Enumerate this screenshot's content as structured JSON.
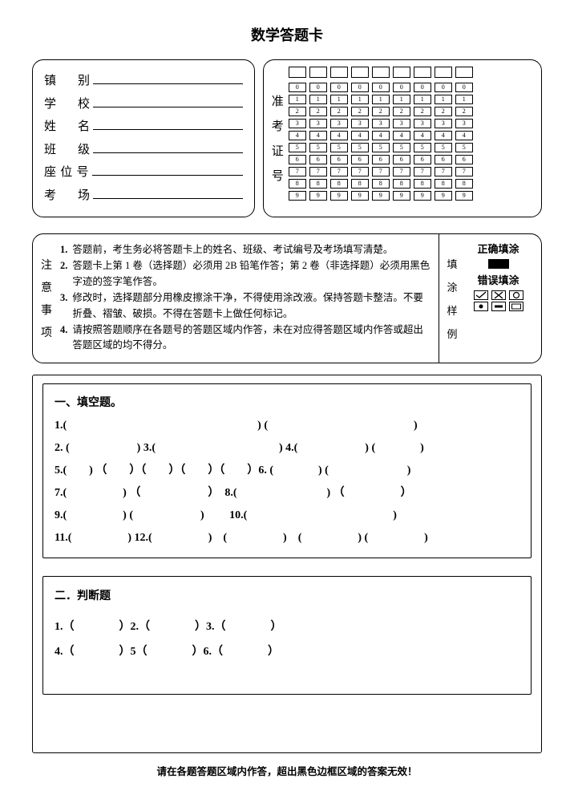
{
  "title": "数学答题卡",
  "info_fields": [
    {
      "chars": [
        "镇",
        "别"
      ],
      "spaced": true
    },
    {
      "chars": [
        "学",
        "校"
      ],
      "spaced": true
    },
    {
      "chars": [
        "姓",
        "名"
      ],
      "spaced": true
    },
    {
      "chars": [
        "班",
        "级"
      ],
      "spaced": true
    },
    {
      "chars": [
        "座",
        "位",
        "号"
      ],
      "spaced": false
    },
    {
      "chars": [
        "考",
        "场"
      ],
      "spaced": true
    }
  ],
  "admission_label": [
    "准",
    "考",
    "证",
    "号"
  ],
  "bubble_columns": 9,
  "bubble_digits": [
    "0",
    "1",
    "2",
    "3",
    "4",
    "5",
    "6",
    "7",
    "8",
    "9"
  ],
  "notice_vlabel": [
    "注",
    "意",
    "事",
    "项"
  ],
  "notices": [
    {
      "n": "1.",
      "t": "答题前，考生务必将答题卡上的姓名、班级、考试编号及考场填写清楚。"
    },
    {
      "n": "2.",
      "t": "答题卡上第 1 卷（选择题）必须用 2B 铅笔作答；第 2 卷（非选择题）必须用黑色字迹的签字笔作答。"
    },
    {
      "n": "3.",
      "t": "修改时，选择题部分用橡皮擦涂干净，不得使用涂改液。保持答题卡整洁。不要折叠、褶皱、破损。不得在答题卡上做任何标记。"
    },
    {
      "n": "4.",
      "t": "请按照答题顺序在各题号的答题区域内作答，未在对应得答题区域内作答或超出答题区域的均不得分。"
    }
  ],
  "sample_vlabel": [
    "填",
    "涂",
    "样",
    "例"
  ],
  "sample_correct": "正确填涂",
  "sample_wrong": "错误填涂",
  "section1_heading": "一、填空题。",
  "fill_lines": [
    "1.(　　　　　　　　　　　　　　　　　) (　　　　　　　　　　　　　)",
    "2.  (　　　　　　)  3.(　　　　　　　　　　　)  4.(　　　　　　) (　　　　)",
    "5.(　　) （　　）（　　）（　　）（　　）6.  (　　　　) (　　　　　　　)",
    "7.(　　　　　) （　　　　　　）　8.(　　　　　　　　) （　　　　　）",
    "9.(　　　　　) (　　　　　　)　　 10.(　　　　　　　　　　　　　)",
    "11.(　　　　　) 12.(　　　　　)　(　　　　　)　(　　　　　) (　　　　　)"
  ],
  "section2_heading": "二．判断题",
  "judge_lines": [
    "1.（　　　　）2.（　　　　）3.（　　　　）",
    "4.（　　　　）5（　　　　）6.（　　　　）"
  ],
  "footer": "请在各题答题区域内作答，超出黑色边框区域的答案无效！",
  "colors": {
    "bg": "#ffffff",
    "fg": "#000000"
  }
}
